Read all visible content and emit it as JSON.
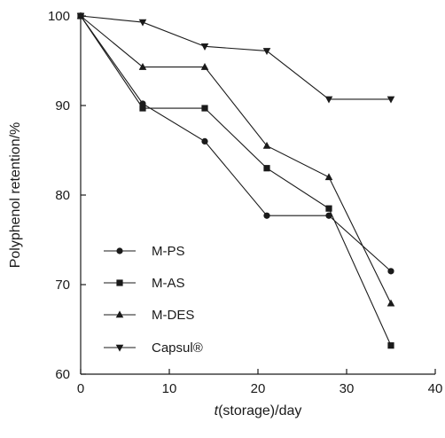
{
  "chart_data": {
    "type": "line",
    "x": [
      0,
      7,
      14,
      21,
      28,
      35
    ],
    "xlim": [
      0,
      40
    ],
    "ylim": [
      60,
      100
    ],
    "xticks": [
      0,
      10,
      20,
      30,
      40
    ],
    "yticks": [
      60,
      70,
      80,
      90,
      100
    ],
    "xlabel_italic": "t",
    "xlabel_rest": "(storage)/day",
    "ylabel": "Polyphenol retention/%",
    "grid": false,
    "legend_position": "bottom-left",
    "series": [
      {
        "name": "M-PS",
        "marker": "circle",
        "values": [
          100,
          90.2,
          86,
          77.7,
          77.7,
          71.5
        ]
      },
      {
        "name": "M-AS",
        "marker": "square",
        "values": [
          100,
          89.7,
          89.7,
          83,
          78.5,
          63.2
        ]
      },
      {
        "name": "M-DES",
        "marker": "triangle-up",
        "values": [
          100,
          94.3,
          94.3,
          85.5,
          82,
          67.9
        ]
      },
      {
        "name": "Capsul®",
        "marker": "triangle-down",
        "values": [
          100,
          99.3,
          96.6,
          96.1,
          90.7,
          90.7
        ]
      }
    ],
    "line_color": "#1a1a1a"
  }
}
